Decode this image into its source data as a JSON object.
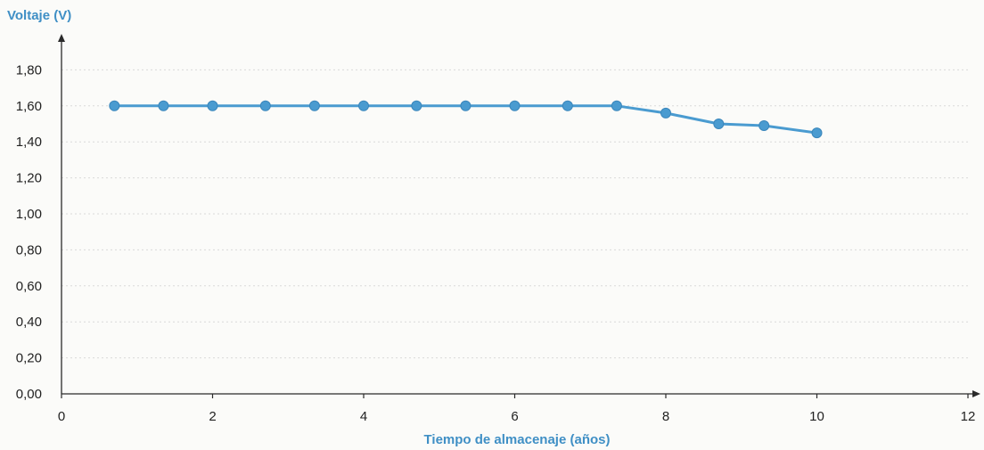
{
  "chart_data": {
    "type": "line",
    "xlabel": "Tiempo de almacenaje (años)",
    "ylabel": "Voltaje (V)",
    "xlim": [
      0,
      12
    ],
    "ylim": [
      0,
      1.9
    ],
    "x_ticks": [
      0,
      2,
      4,
      6,
      8,
      10,
      12
    ],
    "x_tick_labels": [
      "0",
      "2",
      "4",
      "6",
      "8",
      "10",
      "12"
    ],
    "y_ticks": [
      0,
      0.2,
      0.4,
      0.6,
      0.8,
      1.0,
      1.2,
      1.4,
      1.6,
      1.8
    ],
    "y_tick_labels": [
      "0,00",
      "0,20",
      "0,40",
      "0,60",
      "0,80",
      "1,00",
      "1,20",
      "1,40",
      "1,60",
      "1,80"
    ],
    "grid": "horizontal",
    "legend": "none",
    "series": [
      {
        "color": "#4a9bd0",
        "points": [
          {
            "x": 0.7,
            "y": 1.6
          },
          {
            "x": 1.35,
            "y": 1.6
          },
          {
            "x": 2.0,
            "y": 1.6
          },
          {
            "x": 2.7,
            "y": 1.6
          },
          {
            "x": 3.35,
            "y": 1.6
          },
          {
            "x": 4.0,
            "y": 1.6
          },
          {
            "x": 4.7,
            "y": 1.6
          },
          {
            "x": 5.35,
            "y": 1.6
          },
          {
            "x": 6.0,
            "y": 1.6
          },
          {
            "x": 6.7,
            "y": 1.6
          },
          {
            "x": 7.35,
            "y": 1.6
          },
          {
            "x": 8.0,
            "y": 1.56
          },
          {
            "x": 8.7,
            "y": 1.5
          },
          {
            "x": 9.3,
            "y": 1.49
          },
          {
            "x": 10.0,
            "y": 1.45
          }
        ]
      }
    ]
  }
}
